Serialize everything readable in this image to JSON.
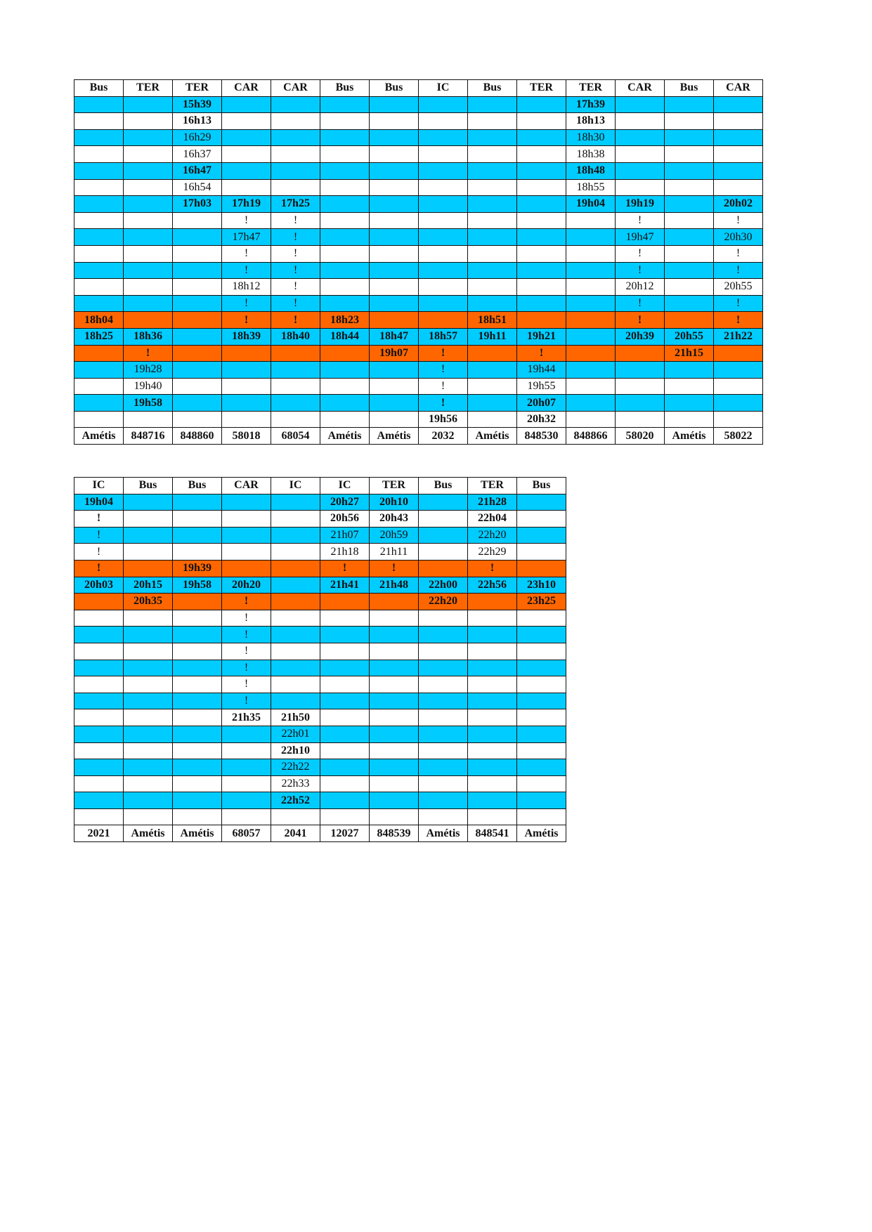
{
  "colors": {
    "blue": "#00CCFF",
    "orange": "#FF6600",
    "white": "#FFFFFF"
  },
  "tables": [
    {
      "headers": [
        "Bus",
        "TER",
        "TER",
        "CAR",
        "CAR",
        "Bus",
        "Bus",
        "IC",
        "Bus",
        "TER",
        "TER",
        "CAR",
        "Bus",
        "CAR"
      ],
      "rows": [
        {
          "color": "blue",
          "cells": [
            "",
            "",
            {
              "v": "15h39",
              "b": true
            },
            "",
            "",
            "",
            "",
            "",
            "",
            "",
            {
              "v": "17h39",
              "b": true
            },
            "",
            "",
            ""
          ]
        },
        {
          "color": "white",
          "cells": [
            "",
            "",
            {
              "v": "16h13",
              "b": true
            },
            "",
            "",
            "",
            "",
            "",
            "",
            "",
            {
              "v": "18h13",
              "b": true
            },
            "",
            "",
            ""
          ]
        },
        {
          "color": "blue",
          "cells": [
            "",
            "",
            {
              "v": "16h29"
            },
            "",
            "",
            "",
            "",
            "",
            "",
            "",
            {
              "v": "18h30"
            },
            "",
            "",
            ""
          ]
        },
        {
          "color": "white",
          "cells": [
            "",
            "",
            {
              "v": "16h37"
            },
            "",
            "",
            "",
            "",
            "",
            "",
            "",
            {
              "v": "18h38"
            },
            "",
            "",
            ""
          ]
        },
        {
          "color": "blue",
          "cells": [
            "",
            "",
            {
              "v": "16h47",
              "b": true
            },
            "",
            "",
            "",
            "",
            "",
            "",
            "",
            {
              "v": "18h48",
              "b": true
            },
            "",
            "",
            ""
          ]
        },
        {
          "color": "white",
          "cells": [
            "",
            "",
            {
              "v": "16h54"
            },
            "",
            "",
            "",
            "",
            "",
            "",
            "",
            {
              "v": "18h55"
            },
            "",
            "",
            ""
          ]
        },
        {
          "color": "blue",
          "cells": [
            "",
            "",
            {
              "v": "17h03",
              "b": true
            },
            {
              "v": "17h19",
              "b": true
            },
            {
              "v": "17h25",
              "b": true
            },
            "",
            "",
            "",
            "",
            "",
            {
              "v": "19h04",
              "b": true
            },
            {
              "v": "19h19",
              "b": true
            },
            "",
            {
              "v": "20h02",
              "b": true
            }
          ]
        },
        {
          "color": "white",
          "cells": [
            "",
            "",
            "",
            {
              "v": "!"
            },
            {
              "v": "!"
            },
            "",
            "",
            "",
            "",
            "",
            "",
            {
              "v": "!"
            },
            "",
            {
              "v": "!"
            }
          ]
        },
        {
          "color": "blue",
          "cells": [
            "",
            "",
            "",
            {
              "v": "17h47"
            },
            {
              "v": "!"
            },
            "",
            "",
            "",
            "",
            "",
            "",
            {
              "v": "19h47"
            },
            "",
            {
              "v": "20h30"
            }
          ]
        },
        {
          "color": "white",
          "cells": [
            "",
            "",
            "",
            {
              "v": "!"
            },
            {
              "v": "!"
            },
            "",
            "",
            "",
            "",
            "",
            "",
            {
              "v": "!"
            },
            "",
            {
              "v": "!"
            }
          ]
        },
        {
          "color": "blue",
          "cells": [
            "",
            "",
            "",
            {
              "v": "!"
            },
            {
              "v": "!"
            },
            "",
            "",
            "",
            "",
            "",
            "",
            {
              "v": "!"
            },
            "",
            {
              "v": "!"
            }
          ]
        },
        {
          "color": "white",
          "cells": [
            "",
            "",
            "",
            {
              "v": "18h12"
            },
            {
              "v": "!"
            },
            "",
            "",
            "",
            "",
            "",
            "",
            {
              "v": "20h12"
            },
            "",
            {
              "v": "20h55"
            }
          ]
        },
        {
          "color": "blue",
          "cells": [
            "",
            "",
            "",
            {
              "v": "!"
            },
            {
              "v": "!"
            },
            "",
            "",
            "",
            "",
            "",
            "",
            {
              "v": "!"
            },
            "",
            {
              "v": "!"
            }
          ]
        },
        {
          "color": "orange",
          "cells": [
            {
              "v": "18h04",
              "b": true
            },
            "",
            "",
            {
              "v": "!",
              "b": true
            },
            {
              "v": "!",
              "b": true
            },
            {
              "v": "18h23",
              "b": true
            },
            "",
            "",
            {
              "v": "18h51",
              "b": true
            },
            "",
            "",
            {
              "v": "!",
              "b": true
            },
            "",
            {
              "v": "!",
              "b": true
            }
          ]
        },
        {
          "color": "blue",
          "cells": [
            {
              "v": "18h25",
              "b": true
            },
            {
              "v": "18h36",
              "b": true
            },
            "",
            {
              "v": "18h39",
              "b": true
            },
            {
              "v": "18h40",
              "b": true
            },
            {
              "v": "18h44",
              "b": true
            },
            {
              "v": "18h47",
              "b": true
            },
            {
              "v": "18h57",
              "b": true
            },
            {
              "v": "19h11",
              "b": true
            },
            {
              "v": "19h21",
              "b": true
            },
            "",
            {
              "v": "20h39",
              "b": true
            },
            {
              "v": "20h55",
              "b": true
            },
            {
              "v": "21h22",
              "b": true
            }
          ]
        },
        {
          "color": "orange",
          "cells": [
            "",
            {
              "v": "!",
              "b": true
            },
            "",
            "",
            "",
            "",
            {
              "v": "19h07",
              "b": true
            },
            {
              "v": "!",
              "b": true
            },
            "",
            {
              "v": "!",
              "b": true
            },
            "",
            "",
            {
              "v": "21h15",
              "b": true
            },
            ""
          ]
        },
        {
          "color": "blue",
          "cells": [
            "",
            {
              "v": "19h28"
            },
            "",
            "",
            "",
            "",
            "",
            {
              "v": "!"
            },
            "",
            {
              "v": "19h44"
            },
            "",
            "",
            "",
            ""
          ]
        },
        {
          "color": "white",
          "cells": [
            "",
            {
              "v": "19h40"
            },
            "",
            "",
            "",
            "",
            "",
            {
              "v": "!"
            },
            "",
            {
              "v": "19h55"
            },
            "",
            "",
            "",
            ""
          ]
        },
        {
          "color": "blue",
          "cells": [
            "",
            {
              "v": "19h58",
              "b": true
            },
            "",
            "",
            "",
            "",
            "",
            {
              "v": "!",
              "b": true
            },
            "",
            {
              "v": "20h07",
              "b": true
            },
            "",
            "",
            "",
            ""
          ]
        },
        {
          "color": "white",
          "cells": [
            "",
            "",
            "",
            "",
            "",
            "",
            "",
            {
              "v": "19h56",
              "b": true
            },
            "",
            {
              "v": "20h32",
              "b": true
            },
            "",
            "",
            "",
            ""
          ]
        }
      ],
      "footer": [
        "Amétis",
        "848716",
        "848860",
        "58018",
        "68054",
        "Amétis",
        "Amétis",
        "2032",
        "Amétis",
        "848530",
        "848866",
        "58020",
        "Amétis",
        "58022"
      ]
    },
    {
      "headers": [
        "IC",
        "Bus",
        "Bus",
        "CAR",
        "IC",
        "IC",
        "TER",
        "Bus",
        "TER",
        "Bus"
      ],
      "rows": [
        {
          "color": "blue",
          "cells": [
            {
              "v": "19h04",
              "b": true
            },
            "",
            "",
            "",
            "",
            {
              "v": "20h27",
              "b": true
            },
            {
              "v": "20h10",
              "b": true
            },
            "",
            {
              "v": "21h28",
              "b": true
            },
            ""
          ]
        },
        {
          "color": "white",
          "cells": [
            {
              "v": "!",
              "b": true
            },
            "",
            "",
            "",
            "",
            {
              "v": "20h56",
              "b": true
            },
            {
              "v": "20h43",
              "b": true
            },
            "",
            {
              "v": "22h04",
              "b": true
            },
            ""
          ]
        },
        {
          "color": "blue",
          "cells": [
            {
              "v": "!"
            },
            "",
            "",
            "",
            "",
            {
              "v": "21h07"
            },
            {
              "v": "20h59"
            },
            "",
            {
              "v": "22h20"
            },
            ""
          ]
        },
        {
          "color": "white",
          "cells": [
            {
              "v": "!"
            },
            "",
            "",
            "",
            "",
            {
              "v": "21h18"
            },
            {
              "v": "21h11"
            },
            "",
            {
              "v": "22h29"
            },
            ""
          ]
        },
        {
          "color": "orange",
          "cells": [
            {
              "v": "!",
              "b": true
            },
            "",
            {
              "v": "19h39",
              "b": true
            },
            "",
            "",
            {
              "v": "!",
              "b": true
            },
            {
              "v": "!",
              "b": true
            },
            "",
            {
              "v": "!",
              "b": true
            },
            ""
          ]
        },
        {
          "color": "blue",
          "cells": [
            {
              "v": "20h03",
              "b": true
            },
            {
              "v": "20h15",
              "b": true
            },
            {
              "v": "19h58",
              "b": true
            },
            {
              "v": "20h20",
              "b": true
            },
            "",
            {
              "v": "21h41",
              "b": true
            },
            {
              "v": "21h48",
              "b": true
            },
            {
              "v": "22h00",
              "b": true
            },
            {
              "v": "22h56",
              "b": true
            },
            {
              "v": "23h10",
              "b": true
            }
          ]
        },
        {
          "color": "orange",
          "cells": [
            "",
            {
              "v": "20h35",
              "b": true
            },
            "",
            {
              "v": "!",
              "b": true
            },
            "",
            "",
            "",
            {
              "v": "22h20",
              "b": true
            },
            "",
            {
              "v": "23h25",
              "b": true
            }
          ]
        },
        {
          "color": "white",
          "cells": [
            "",
            "",
            "",
            {
              "v": "!"
            },
            "",
            "",
            "",
            "",
            "",
            ""
          ]
        },
        {
          "color": "blue",
          "cells": [
            "",
            "",
            "",
            {
              "v": "!"
            },
            "",
            "",
            "",
            "",
            "",
            ""
          ]
        },
        {
          "color": "white",
          "cells": [
            "",
            "",
            "",
            {
              "v": "!"
            },
            "",
            "",
            "",
            "",
            "",
            ""
          ]
        },
        {
          "color": "blue",
          "cells": [
            "",
            "",
            "",
            {
              "v": "!"
            },
            "",
            "",
            "",
            "",
            "",
            ""
          ]
        },
        {
          "color": "white",
          "cells": [
            "",
            "",
            "",
            {
              "v": "!"
            },
            "",
            "",
            "",
            "",
            "",
            ""
          ]
        },
        {
          "color": "blue",
          "cells": [
            "",
            "",
            "",
            {
              "v": "!"
            },
            "",
            "",
            "",
            "",
            "",
            ""
          ]
        },
        {
          "color": "white",
          "cells": [
            "",
            "",
            "",
            {
              "v": "21h35",
              "b": true
            },
            {
              "v": "21h50",
              "b": true
            },
            "",
            "",
            "",
            "",
            ""
          ]
        },
        {
          "color": "blue",
          "cells": [
            "",
            "",
            "",
            "",
            {
              "v": "22h01"
            },
            "",
            "",
            "",
            "",
            ""
          ]
        },
        {
          "color": "white",
          "cells": [
            "",
            "",
            "",
            "",
            {
              "v": "22h10",
              "b": true
            },
            "",
            "",
            "",
            "",
            ""
          ]
        },
        {
          "color": "blue",
          "cells": [
            "",
            "",
            "",
            "",
            {
              "v": "22h22"
            },
            "",
            "",
            "",
            "",
            ""
          ]
        },
        {
          "color": "white",
          "cells": [
            "",
            "",
            "",
            "",
            {
              "v": "22h33"
            },
            "",
            "",
            "",
            "",
            ""
          ]
        },
        {
          "color": "blue",
          "cells": [
            "",
            "",
            "",
            "",
            {
              "v": "22h52",
              "b": true
            },
            "",
            "",
            "",
            "",
            ""
          ]
        },
        {
          "color": "white",
          "cells": [
            "",
            "",
            "",
            "",
            "",
            "",
            "",
            "",
            "",
            ""
          ]
        }
      ],
      "footer": [
        "2021",
        "Amétis",
        "Amétis",
        "68057",
        "2041",
        "12027",
        "848539",
        "Amétis",
        "848541",
        "Amétis"
      ]
    }
  ]
}
